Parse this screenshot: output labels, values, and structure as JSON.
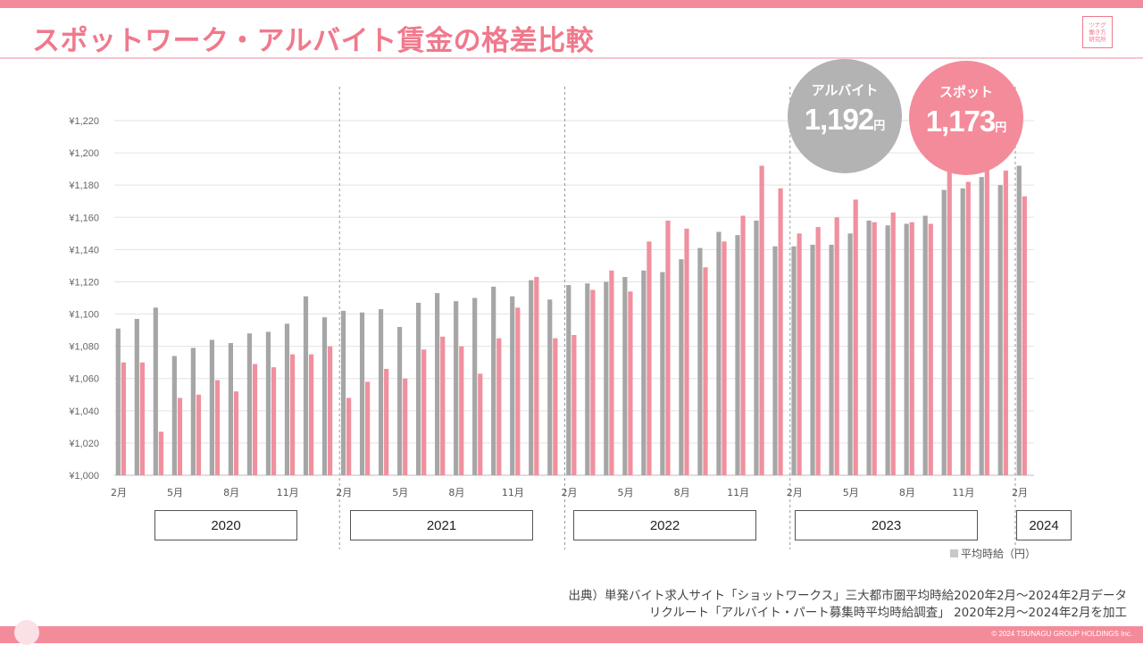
{
  "title": "スポットワーク・アルバイト賃金の格差比較",
  "logo": {
    "line1": "ツナグ",
    "line2": "働き方",
    "line3": "研究所"
  },
  "colors": {
    "accent": "#f0798c",
    "stripe": "#f48b9b",
    "arbeit": "#a6a6a6",
    "spot": "#f0909e"
  },
  "bubbles": {
    "arbeit": {
      "label": "アルバイト",
      "value": "1,192",
      "unit": "円"
    },
    "spot": {
      "label": "スポット",
      "value": "1,173",
      "unit": "円"
    }
  },
  "years": [
    "2020",
    "2021",
    "2022",
    "2023",
    "2024"
  ],
  "legend": {
    "label": "平均時給（円）"
  },
  "source": {
    "line1": "出典）単発バイト求人サイト「ショットワークス」三大都市圏平均時給2020年2月～2024年2月データ",
    "line2": "リクルート「アルバイト・パート募集時平均時給調査」 2020年2月～2024年2月を加工"
  },
  "copyright": "© 2024 TSUNAGU GROUP HOLDINGS Inc.",
  "chart_data": {
    "type": "bar",
    "xlabel": "",
    "ylabel": "",
    "ylim": [
      1000,
      1220
    ],
    "y_ticks": [
      1000,
      1020,
      1040,
      1060,
      1080,
      1100,
      1120,
      1140,
      1160,
      1180,
      1200,
      1220
    ],
    "y_tick_labels": [
      "¥1,000",
      "¥1,020",
      "¥1,040",
      "¥1,060",
      "¥1,080",
      "¥1,100",
      "¥1,120",
      "¥1,140",
      "¥1,160",
      "¥1,180",
      "¥1,200",
      "¥1,220"
    ],
    "grid": true,
    "categories": [
      "2020-02",
      "2020-03",
      "2020-04",
      "2020-05",
      "2020-06",
      "2020-07",
      "2020-08",
      "2020-09",
      "2020-10",
      "2020-11",
      "2020-12",
      "2021-01",
      "2021-02",
      "2021-03",
      "2021-04",
      "2021-05",
      "2021-06",
      "2021-07",
      "2021-08",
      "2021-09",
      "2021-10",
      "2021-11",
      "2021-12",
      "2022-01",
      "2022-02",
      "2022-03",
      "2022-04",
      "2022-05",
      "2022-06",
      "2022-07",
      "2022-08",
      "2022-09",
      "2022-10",
      "2022-11",
      "2022-12",
      "2023-01",
      "2023-02",
      "2023-03",
      "2023-04",
      "2023-05",
      "2023-06",
      "2023-07",
      "2023-08",
      "2023-09",
      "2023-10",
      "2023-11",
      "2023-12",
      "2024-01",
      "2024-02"
    ],
    "tick_labels": [
      {
        "index": 0,
        "label": "2月"
      },
      {
        "index": 3,
        "label": "5月"
      },
      {
        "index": 6,
        "label": "8月"
      },
      {
        "index": 9,
        "label": "11月"
      },
      {
        "index": 12,
        "label": "2月"
      },
      {
        "index": 15,
        "label": "5月"
      },
      {
        "index": 18,
        "label": "8月"
      },
      {
        "index": 21,
        "label": "11月"
      },
      {
        "index": 24,
        "label": "2月"
      },
      {
        "index": 27,
        "label": "5月"
      },
      {
        "index": 30,
        "label": "8月"
      },
      {
        "index": 33,
        "label": "11月"
      },
      {
        "index": 36,
        "label": "2月"
      },
      {
        "index": 39,
        "label": "5月"
      },
      {
        "index": 42,
        "label": "8月"
      },
      {
        "index": 45,
        "label": "11月"
      },
      {
        "index": 48,
        "label": "2月"
      }
    ],
    "year_boundaries_after_index": [
      11,
      23,
      35,
      47
    ],
    "series": [
      {
        "name": "アルバイト",
        "values": [
          1091,
          1097,
          1104,
          1074,
          1079,
          1084,
          1082,
          1088,
          1089,
          1094,
          1111,
          1098,
          1102,
          1101,
          1103,
          1092,
          1107,
          1113,
          1108,
          1110,
          1117,
          1111,
          1121,
          1109,
          1118,
          1119,
          1120,
          1123,
          1127,
          1126,
          1134,
          1141,
          1151,
          1149,
          1158,
          1142,
          1142,
          1143,
          1143,
          1150,
          1158,
          1155,
          1156,
          1161,
          1177,
          1178,
          1185,
          1180,
          1192
        ]
      },
      {
        "name": "スポット",
        "values": [
          1070,
          1070,
          1027,
          1048,
          1050,
          1059,
          1052,
          1069,
          1067,
          1075,
          1075,
          1080,
          1048,
          1058,
          1066,
          1060,
          1078,
          1086,
          1080,
          1063,
          1085,
          1104,
          1123,
          1085,
          1087,
          1115,
          1127,
          1114,
          1145,
          1158,
          1153,
          1129,
          1145,
          1161,
          1192,
          1178,
          1150,
          1154,
          1160,
          1171,
          1157,
          1163,
          1157,
          1156,
          1189,
          1182,
          1190,
          1189,
          1173
        ]
      }
    ]
  }
}
